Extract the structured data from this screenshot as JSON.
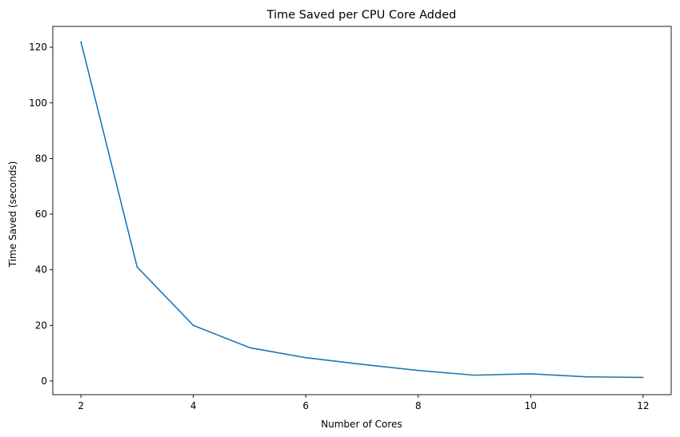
{
  "chart_data": {
    "type": "line",
    "title": "Time Saved per CPU Core Added",
    "xlabel": "Number of Cores",
    "ylabel": "Time Saved (seconds)",
    "x": [
      2,
      3,
      4,
      5,
      6,
      7,
      8,
      9,
      10,
      11,
      12
    ],
    "series": [
      {
        "values": [
          122,
          41,
          20,
          12,
          8.4,
          6,
          3.8,
          2.1,
          2.6,
          1.5,
          1.3
        ],
        "color": "#1f77b4"
      }
    ],
    "xlim": [
      1.5,
      12.5
    ],
    "ylim": [
      -4.9,
      127.5
    ],
    "xticks": [
      2,
      4,
      6,
      8,
      10,
      12
    ],
    "yticks": [
      0,
      20,
      40,
      60,
      80,
      100,
      120
    ],
    "grid": false,
    "legend": "none"
  }
}
